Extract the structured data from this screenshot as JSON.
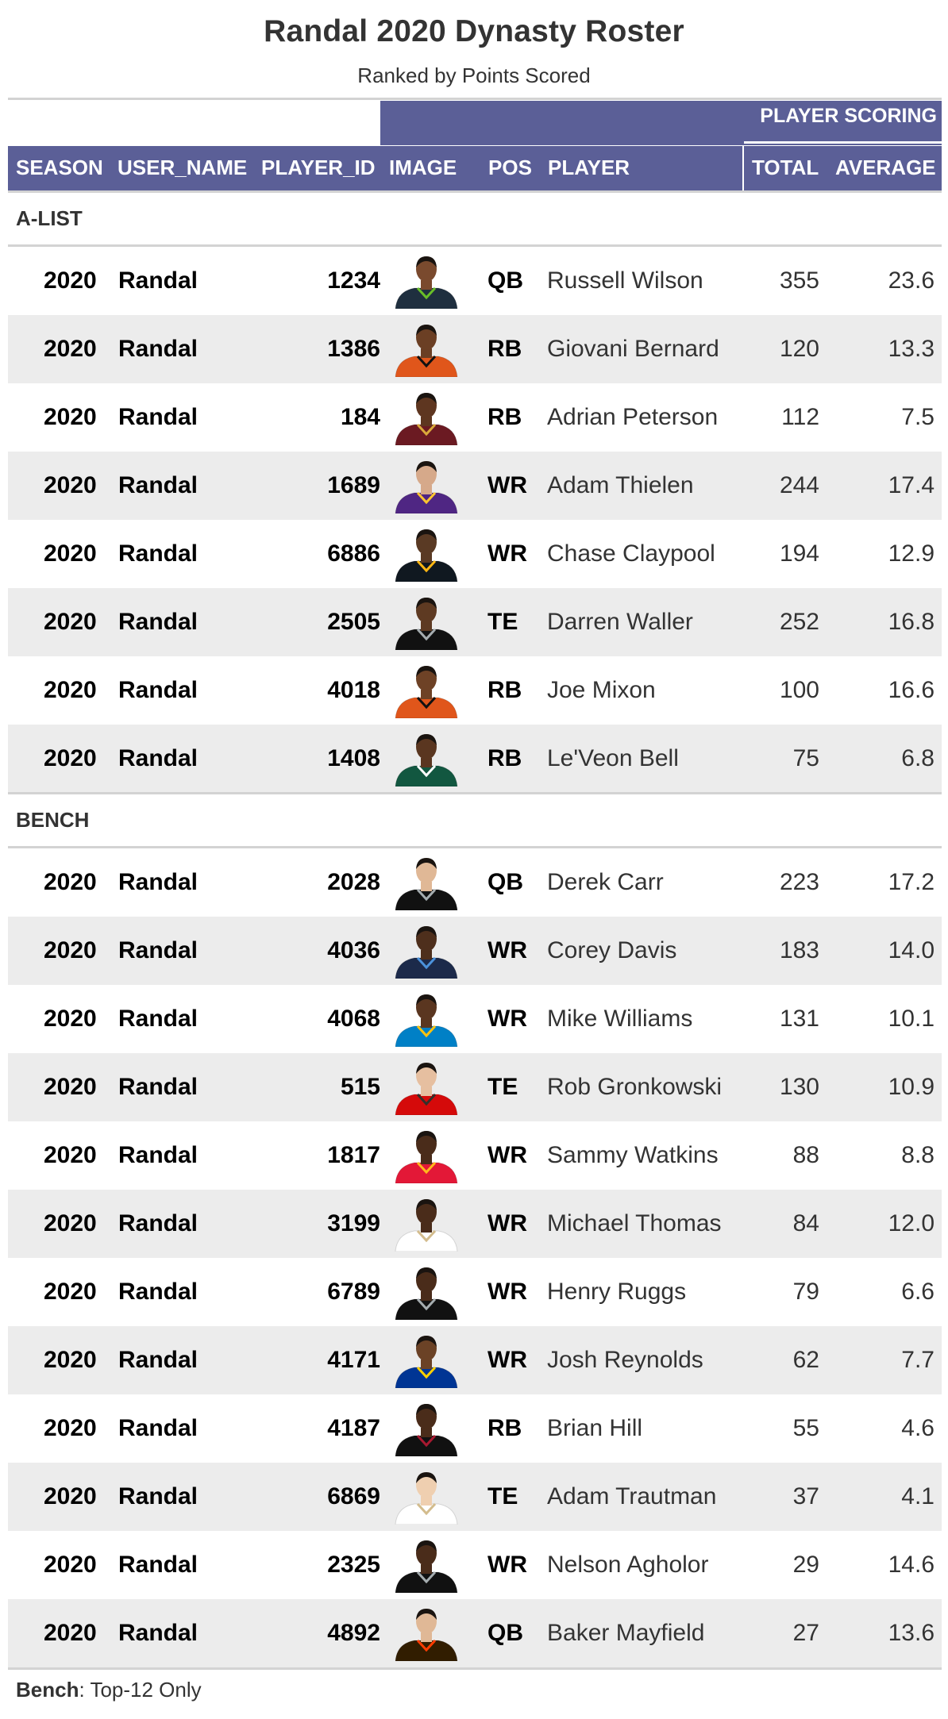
{
  "title": "Randal 2020 Dynasty Roster",
  "subtitle": "Ranked by Points Scored",
  "spanner": "PLAYER SCORING",
  "columns": {
    "season": "SEASON",
    "user_name": "USER_NAME",
    "player_id": "PLAYER_ID",
    "image": "IMAGE",
    "pos": "POS",
    "player": "PLAYER",
    "total": "TOTAL",
    "average": "AVERAGE"
  },
  "groups": [
    {
      "label": "A-LIST",
      "rows": [
        {
          "season": "2020",
          "user": "Randal",
          "player_id": "1234",
          "pos": "QB",
          "player": "Russell Wilson",
          "total": "355",
          "average": "23.6",
          "jersey": "#1f2f3f",
          "accent": "#69be28",
          "skin": "#7a4a2e"
        },
        {
          "season": "2020",
          "user": "Randal",
          "player_id": "1386",
          "pos": "RB",
          "player": "Giovani Bernard",
          "total": "120",
          "average": "13.3",
          "jersey": "#e0561b",
          "accent": "#111111",
          "skin": "#6b3f24"
        },
        {
          "season": "2020",
          "user": "Randal",
          "player_id": "184",
          "pos": "RB",
          "player": "Adrian Peterson",
          "total": "112",
          "average": "7.5",
          "jersey": "#6b1a22",
          "accent": "#d9a93a",
          "skin": "#5e3620"
        },
        {
          "season": "2020",
          "user": "Randal",
          "player_id": "1689",
          "pos": "WR",
          "player": "Adam Thielen",
          "total": "244",
          "average": "17.4",
          "jersey": "#4f2683",
          "accent": "#ffc62f",
          "skin": "#d6a98a"
        },
        {
          "season": "2020",
          "user": "Randal",
          "player_id": "6886",
          "pos": "WR",
          "player": "Chase Claypool",
          "total": "194",
          "average": "12.9",
          "jersey": "#101820",
          "accent": "#ffb612",
          "skin": "#5a3a24"
        },
        {
          "season": "2020",
          "user": "Randal",
          "player_id": "2505",
          "pos": "TE",
          "player": "Darren Waller",
          "total": "252",
          "average": "16.8",
          "jersey": "#111111",
          "accent": "#a5acaf",
          "skin": "#5e3a22"
        },
        {
          "season": "2020",
          "user": "Randal",
          "player_id": "4018",
          "pos": "RB",
          "player": "Joe Mixon",
          "total": "100",
          "average": "16.6",
          "jersey": "#e0561b",
          "accent": "#111111",
          "skin": "#6e4226"
        },
        {
          "season": "2020",
          "user": "Randal",
          "player_id": "1408",
          "pos": "RB",
          "player": "Le'Veon Bell",
          "total": "75",
          "average": "6.8",
          "jersey": "#125740",
          "accent": "#ffffff",
          "skin": "#5a3620"
        }
      ]
    },
    {
      "label": "BENCH",
      "rows": [
        {
          "season": "2020",
          "user": "Randal",
          "player_id": "2028",
          "pos": "QB",
          "player": "Derek Carr",
          "total": "223",
          "average": "17.2",
          "jersey": "#111111",
          "accent": "#a5acaf",
          "skin": "#e0b896"
        },
        {
          "season": "2020",
          "user": "Randal",
          "player_id": "4036",
          "pos": "WR",
          "player": "Corey Davis",
          "total": "183",
          "average": "14.0",
          "jersey": "#1c2a4a",
          "accent": "#4b92db",
          "skin": "#4e2f1c"
        },
        {
          "season": "2020",
          "user": "Randal",
          "player_id": "4068",
          "pos": "WR",
          "player": "Mike Williams",
          "total": "131",
          "average": "10.1",
          "jersey": "#0080c6",
          "accent": "#ffc20e",
          "skin": "#5a3620"
        },
        {
          "season": "2020",
          "user": "Randal",
          "player_id": "515",
          "pos": "TE",
          "player": "Rob Gronkowski",
          "total": "130",
          "average": "10.9",
          "jersey": "#d50a0a",
          "accent": "#34302b",
          "skin": "#e6bfa0"
        },
        {
          "season": "2020",
          "user": "Randal",
          "player_id": "1817",
          "pos": "WR",
          "player": "Sammy Watkins",
          "total": "88",
          "average": "8.8",
          "jersey": "#e31837",
          "accent": "#ffb81c",
          "skin": "#4a2c1a"
        },
        {
          "season": "2020",
          "user": "Randal",
          "player_id": "3199",
          "pos": "WR",
          "player": "Michael Thomas",
          "total": "84",
          "average": "12.0",
          "jersey": "#ffffff",
          "accent": "#d3bc8d",
          "skin": "#4a2c1a"
        },
        {
          "season": "2020",
          "user": "Randal",
          "player_id": "6789",
          "pos": "WR",
          "player": "Henry Ruggs",
          "total": "79",
          "average": "6.6",
          "jersey": "#111111",
          "accent": "#a5acaf",
          "skin": "#4a2c1a"
        },
        {
          "season": "2020",
          "user": "Randal",
          "player_id": "4171",
          "pos": "WR",
          "player": "Josh Reynolds",
          "total": "62",
          "average": "7.7",
          "jersey": "#003594",
          "accent": "#ffd100",
          "skin": "#6b4226"
        },
        {
          "season": "2020",
          "user": "Randal",
          "player_id": "4187",
          "pos": "RB",
          "player": "Brian Hill",
          "total": "55",
          "average": "4.6",
          "jersey": "#111111",
          "accent": "#a71930",
          "skin": "#4a2c1a"
        },
        {
          "season": "2020",
          "user": "Randal",
          "player_id": "6869",
          "pos": "TE",
          "player": "Adam Trautman",
          "total": "37",
          "average": "4.1",
          "jersey": "#ffffff",
          "accent": "#d3bc8d",
          "skin": "#efcfb0"
        },
        {
          "season": "2020",
          "user": "Randal",
          "player_id": "2325",
          "pos": "WR",
          "player": "Nelson Agholor",
          "total": "29",
          "average": "14.6",
          "jersey": "#111111",
          "accent": "#a5acaf",
          "skin": "#4a2c1a"
        },
        {
          "season": "2020",
          "user": "Randal",
          "player_id": "4892",
          "pos": "QB",
          "player": "Baker Mayfield",
          "total": "27",
          "average": "13.6",
          "jersey": "#311d00",
          "accent": "#ff3c00",
          "skin": "#e0b896"
        }
      ]
    }
  ],
  "footnote": {
    "bold": "Bench",
    "rest": ": Top-12 Only"
  },
  "colors": {
    "header_bg": "#5b5f97",
    "stripe": "#ececec",
    "rule": "#d3d3d3"
  }
}
